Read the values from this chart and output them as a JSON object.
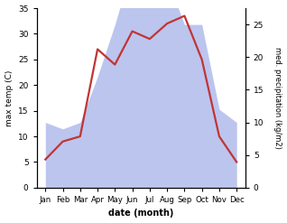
{
  "months": [
    "Jan",
    "Feb",
    "Mar",
    "Apr",
    "May",
    "Jun",
    "Jul",
    "Aug",
    "Sep",
    "Oct",
    "Nov",
    "Dec"
  ],
  "temperature": [
    5.5,
    9.0,
    10.0,
    27.0,
    24.0,
    30.5,
    29.0,
    32.0,
    33.5,
    25.0,
    10.0,
    5.0
  ],
  "precipitation": [
    10,
    9,
    10,
    17,
    25,
    34,
    28,
    32,
    25,
    25,
    12,
    10
  ],
  "temp_ylim": [
    0,
    35
  ],
  "precip_ylim": [
    0,
    27.5
  ],
  "temp_yticks": [
    0,
    5,
    10,
    15,
    20,
    25,
    30,
    35
  ],
  "precip_yticks": [
    0,
    5,
    10,
    15,
    20,
    25
  ],
  "temp_color": "#c03535",
  "precip_fill_color": "#bcc5ee",
  "ylabel_left": "max temp (C)",
  "ylabel_right": "med. precipitation (kg/m2)",
  "xlabel": "date (month)",
  "background_color": "#ffffff",
  "line_width": 1.6
}
